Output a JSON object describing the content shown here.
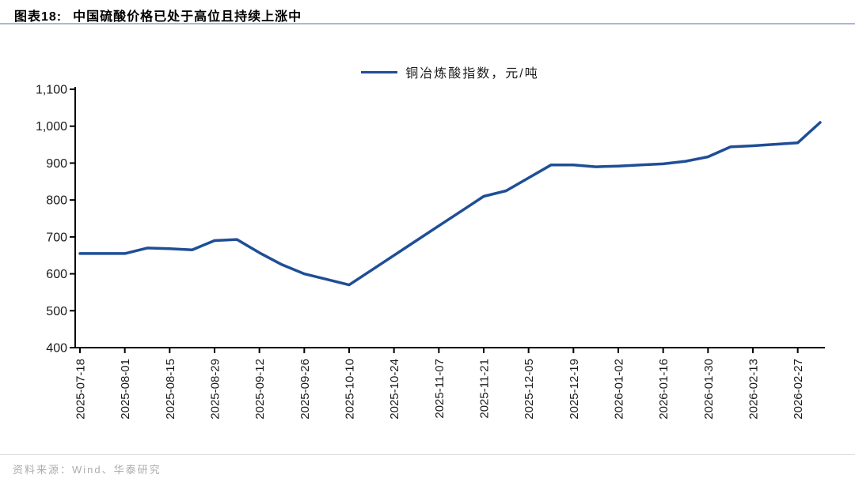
{
  "page": {
    "title_prefix": "图表18:",
    "title": "中国硫酸价格已处于高位且持续上涨中",
    "source": "资料来源：Wind、华泰研究"
  },
  "colors": {
    "line": "#1f4e96",
    "axis": "#000000",
    "axis_text": "#1a1a1a",
    "title_rule": "#a6b9d2",
    "source_text": "#acacac"
  },
  "chart_data": {
    "type": "line",
    "title": "",
    "xlabel": "",
    "ylabel": "",
    "legend_position": "top-center",
    "grid": false,
    "ylim": [
      400,
      1100
    ],
    "ytick_step": 100,
    "x_tick_every": 2,
    "x": [
      "2025-07-18",
      "2025-07-25",
      "2025-08-01",
      "2025-08-08",
      "2025-08-15",
      "2025-08-22",
      "2025-08-29",
      "2025-09-05",
      "2025-09-12",
      "2025-09-19",
      "2025-09-26",
      "2025-10-03",
      "2025-10-10",
      "2025-10-17",
      "2025-10-24",
      "2025-10-31",
      "2025-11-07",
      "2025-11-14",
      "2025-11-21",
      "2025-11-28",
      "2025-12-05",
      "2025-12-12",
      "2025-12-19",
      "2025-12-26",
      "2026-01-02",
      "2026-01-09",
      "2026-01-16",
      "2026-01-23",
      "2026-01-30",
      "2026-02-06",
      "2026-02-13",
      "2026-02-20",
      "2026-02-27",
      "2026-03-06"
    ],
    "x_tick_labels": [
      "2025-07-18",
      "2025-08-01",
      "2025-08-15",
      "2025-08-29",
      "2025-09-12",
      "2025-09-26",
      "2025-10-10",
      "2025-10-24",
      "2025-11-07",
      "2025-11-21",
      "2025-12-05",
      "2025-12-19",
      "2026-01-02",
      "2026-01-16",
      "2026-01-30",
      "2026-02-13",
      "2026-02-27"
    ],
    "series": [
      {
        "name": "铜冶炼酸指数，元/吨",
        "color": "#1f4e96",
        "values": [
          655,
          655,
          655,
          670,
          668,
          665,
          690,
          693,
          657,
          625,
          600,
          585,
          570,
          610,
          650,
          690,
          730,
          770,
          810,
          825,
          860,
          895,
          895,
          890,
          892,
          895,
          898,
          905,
          917,
          944,
          947,
          951,
          955,
          1010
        ]
      }
    ]
  }
}
